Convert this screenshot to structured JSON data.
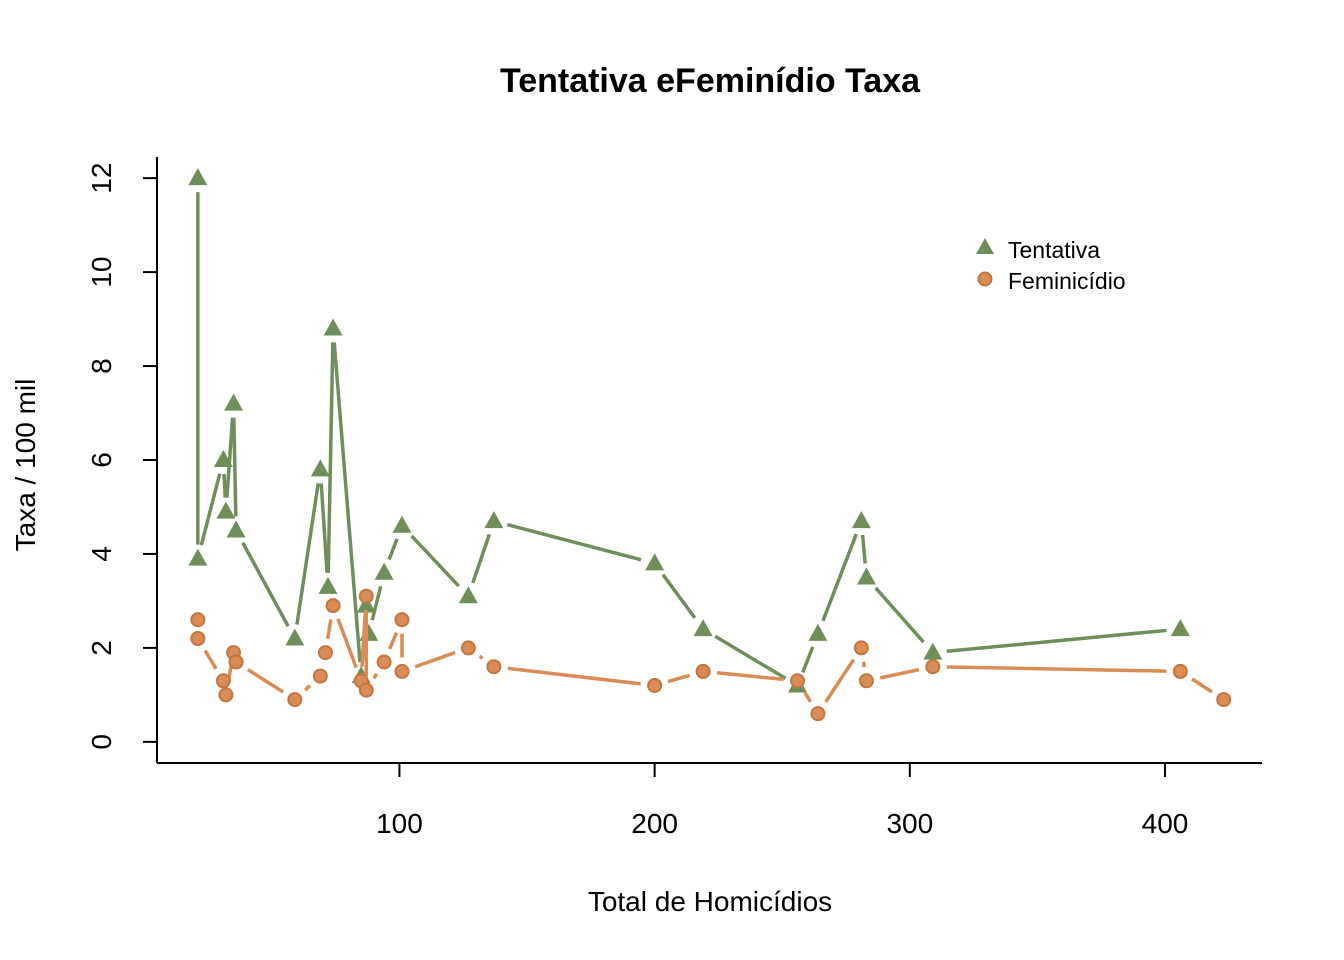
{
  "chart_data": {
    "type": "line",
    "title": "Tentativa eFeminídio Taxa",
    "xlabel": "Total de Homicídios",
    "ylabel": "Taxa / 100 mil",
    "xlim": [
      5,
      438
    ],
    "ylim": [
      -0.45,
      12.45
    ],
    "x_ticks": [
      100,
      200,
      300,
      400
    ],
    "x_tick_labels": [
      "100",
      "200",
      "300",
      "400"
    ],
    "y_ticks": [
      0,
      2,
      4,
      6,
      8,
      10,
      12
    ],
    "y_tick_labels": [
      "0",
      "2",
      "4",
      "6",
      "8",
      "10",
      "12"
    ],
    "grid": false,
    "legend_position": "top-right",
    "series": [
      {
        "name": "Tentativa",
        "color": "#6e8f5a",
        "marker": "triangle",
        "points": [
          [
            21,
            12.0
          ],
          [
            21,
            3.9
          ],
          [
            31,
            6.0
          ],
          [
            32,
            4.9
          ],
          [
            35,
            7.2
          ],
          [
            36,
            4.5
          ],
          [
            59,
            2.2
          ],
          [
            69,
            5.8
          ],
          [
            72,
            3.3
          ],
          [
            74,
            8.8
          ],
          [
            85,
            1.4
          ],
          [
            87,
            2.9
          ],
          [
            88,
            2.3
          ],
          [
            94,
            3.6
          ],
          [
            101,
            4.6
          ],
          [
            127,
            3.1
          ],
          [
            137,
            4.7
          ],
          [
            200,
            3.8
          ],
          [
            219,
            2.4
          ],
          [
            256,
            1.2
          ],
          [
            264,
            2.3
          ],
          [
            281,
            4.7
          ],
          [
            283,
            3.5
          ],
          [
            309,
            1.9
          ],
          [
            406,
            2.4
          ]
        ]
      },
      {
        "name": "Feminicídio",
        "color": "#d98c55",
        "marker": "circle",
        "points": [
          [
            21,
            2.6
          ],
          [
            21,
            2.2
          ],
          [
            31,
            1.3
          ],
          [
            32,
            1.0
          ],
          [
            35,
            1.9
          ],
          [
            36,
            1.7
          ],
          [
            59,
            0.9
          ],
          [
            69,
            1.4
          ],
          [
            71,
            1.9
          ],
          [
            74,
            2.9
          ],
          [
            85,
            1.3
          ],
          [
            87,
            3.1
          ],
          [
            87,
            1.1
          ],
          [
            94,
            1.7
          ],
          [
            101,
            2.6
          ],
          [
            101,
            1.5
          ],
          [
            127,
            2.0
          ],
          [
            137,
            1.6
          ],
          [
            200,
            1.2
          ],
          [
            219,
            1.5
          ],
          [
            256,
            1.3
          ],
          [
            264,
            0.6
          ],
          [
            281,
            2.0
          ],
          [
            283,
            1.3
          ],
          [
            309,
            1.6
          ],
          [
            406,
            1.5
          ],
          [
            423,
            0.9
          ]
        ]
      }
    ]
  }
}
